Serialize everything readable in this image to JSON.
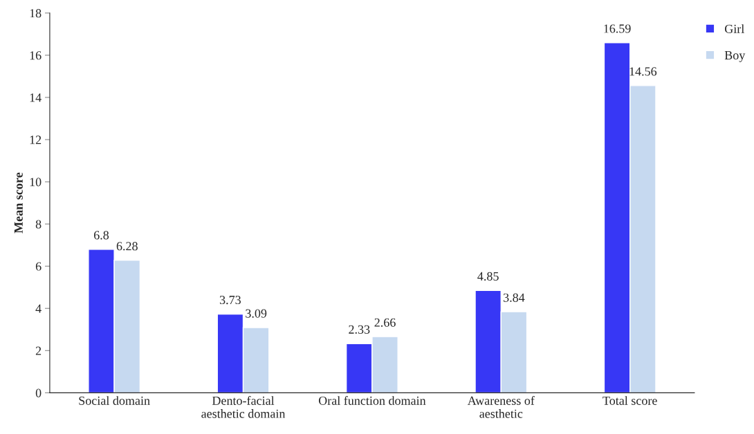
{
  "chart_data": {
    "type": "bar",
    "ylabel": "Mean score",
    "categories": [
      "Social domain",
      "Dento-facial\naesthetic domain",
      "Oral function domain",
      "Awareness of\naesthetic",
      "Total score"
    ],
    "series": [
      {
        "name": "Girl",
        "color": "#3737f5",
        "values": [
          6.8,
          3.73,
          2.33,
          4.85,
          16.59
        ]
      },
      {
        "name": "Boy",
        "color": "#c6d9f0",
        "values": [
          6.28,
          3.09,
          2.66,
          3.84,
          14.56
        ]
      }
    ],
    "ylim": [
      0,
      18
    ],
    "yticks": [
      0,
      2,
      4,
      6,
      8,
      10,
      12,
      14,
      16,
      18
    ],
    "grid": false,
    "legend": "top right",
    "data_labels": true
  }
}
